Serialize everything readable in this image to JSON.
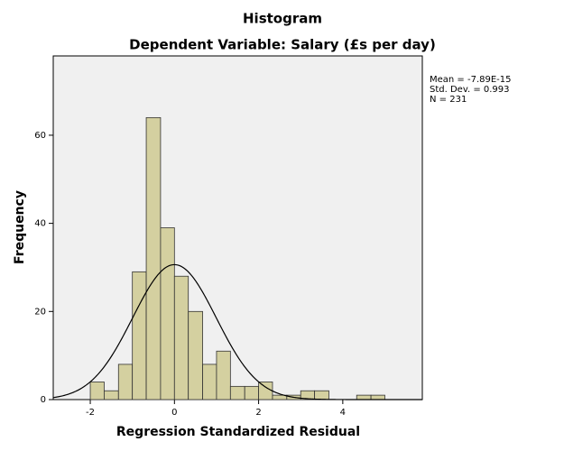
{
  "chart_data": {
    "type": "histogram",
    "title": "Histogram",
    "subtitle": "Dependent Variable: Salary (£s per day)",
    "x_label": "Regression Standardized Residual",
    "y_label": "Frequency",
    "bins": [
      -2,
      -1.67,
      -1.33,
      -1,
      -0.67,
      -0.33,
      0,
      0.33,
      0.67,
      1,
      1.33,
      1.67,
      2,
      2.33,
      2.67,
      3,
      3.33,
      3.67,
      4,
      4.33,
      4.67,
      5
    ],
    "counts": [
      4,
      2,
      8,
      29,
      64,
      39,
      28,
      20,
      8,
      11,
      3,
      3,
      4,
      1,
      1,
      2,
      2,
      0,
      0,
      1,
      1
    ],
    "color": "#d4d0a0",
    "xlim": [
      -2.88,
      5.89
    ],
    "xticks": [
      -2,
      0,
      2,
      4
    ],
    "ylim": [
      0,
      78
    ],
    "yticks": [
      0,
      20,
      40,
      60
    ],
    "normal_curve": {
      "mean": {
        "value": -7.89e-15,
        "label": "Mean = -7.89E-15"
      },
      "sd": {
        "value": 0.993,
        "label": "Std. Dev. = 0.993"
      },
      "n": {
        "value": 231,
        "label": "N = 231"
      }
    }
  }
}
